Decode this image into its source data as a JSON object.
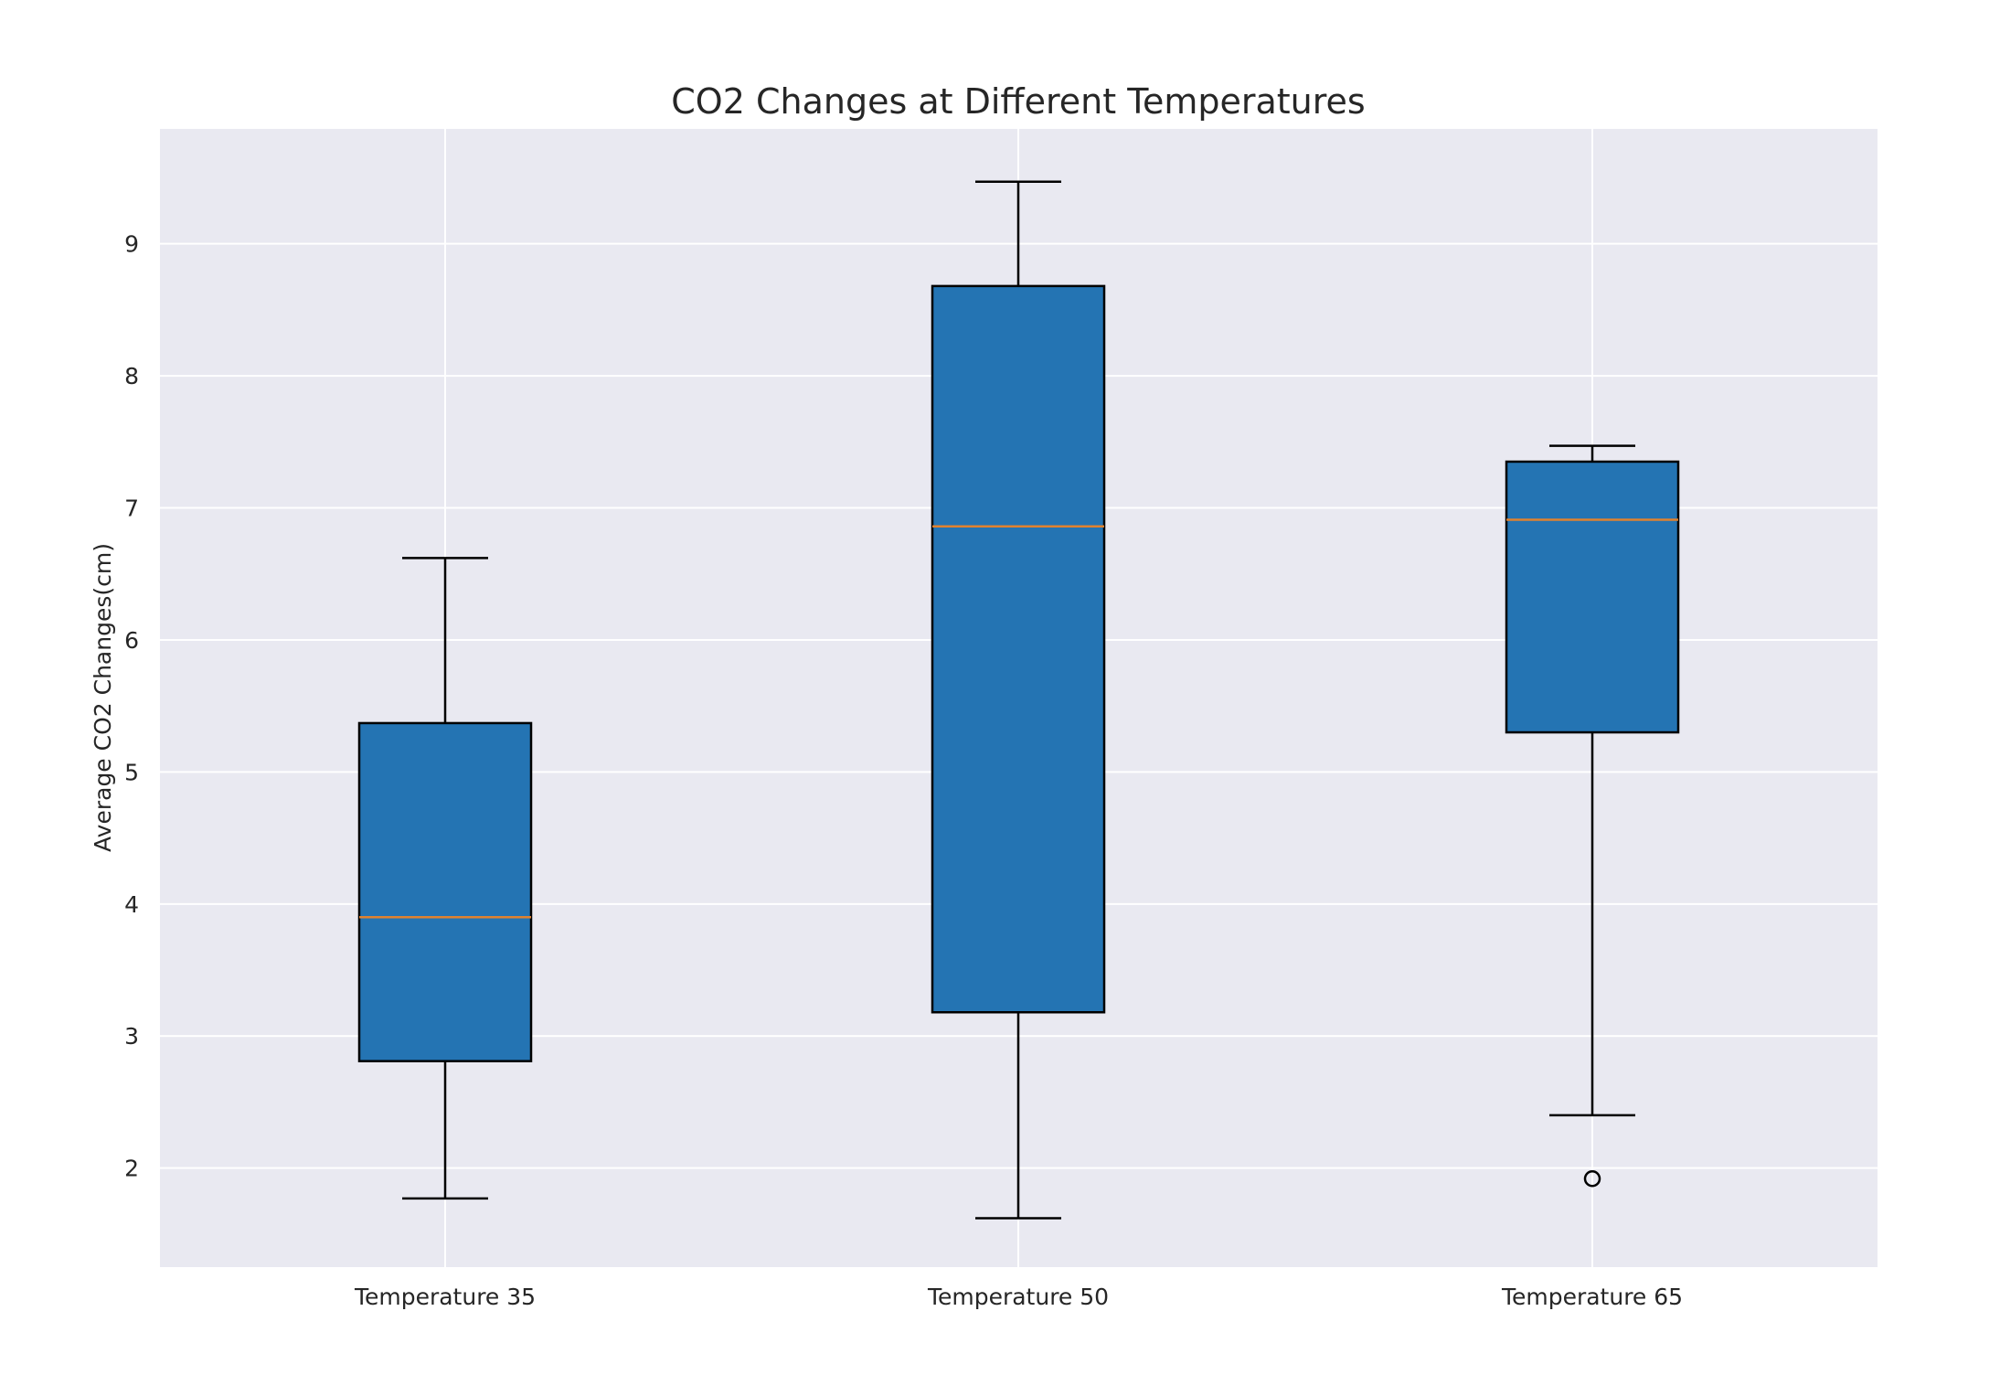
{
  "chart_data": {
    "type": "box",
    "title": "CO2 Changes at Different Temperatures",
    "xlabel": "",
    "ylabel": "Average CO2 Changes(cm)",
    "ylim": [
      1.25,
      9.87
    ],
    "yticks": [
      2,
      3,
      4,
      5,
      6,
      7,
      8,
      9
    ],
    "grid": true,
    "categories": [
      "Temperature 35",
      "Temperature 50",
      "Temperature 65"
    ],
    "boxes": [
      {
        "label": "Temperature 35",
        "whisker_low": 1.77,
        "q1": 2.81,
        "median": 3.9,
        "q3": 5.37,
        "whisker_high": 6.62,
        "outliers": []
      },
      {
        "label": "Temperature 50",
        "whisker_low": 1.62,
        "q1": 3.18,
        "median": 6.86,
        "q3": 8.68,
        "whisker_high": 9.47,
        "outliers": []
      },
      {
        "label": "Temperature 65",
        "whisker_low": 2.4,
        "q1": 5.3,
        "median": 6.91,
        "q3": 7.35,
        "whisker_high": 7.47,
        "outliers": [
          1.92
        ]
      }
    ],
    "colors": {
      "box_fill": "#2474b3",
      "median": "#e0822f",
      "plot_background": "#e9e9f1",
      "grid": "#ffffff",
      "outline": "#000000"
    }
  }
}
